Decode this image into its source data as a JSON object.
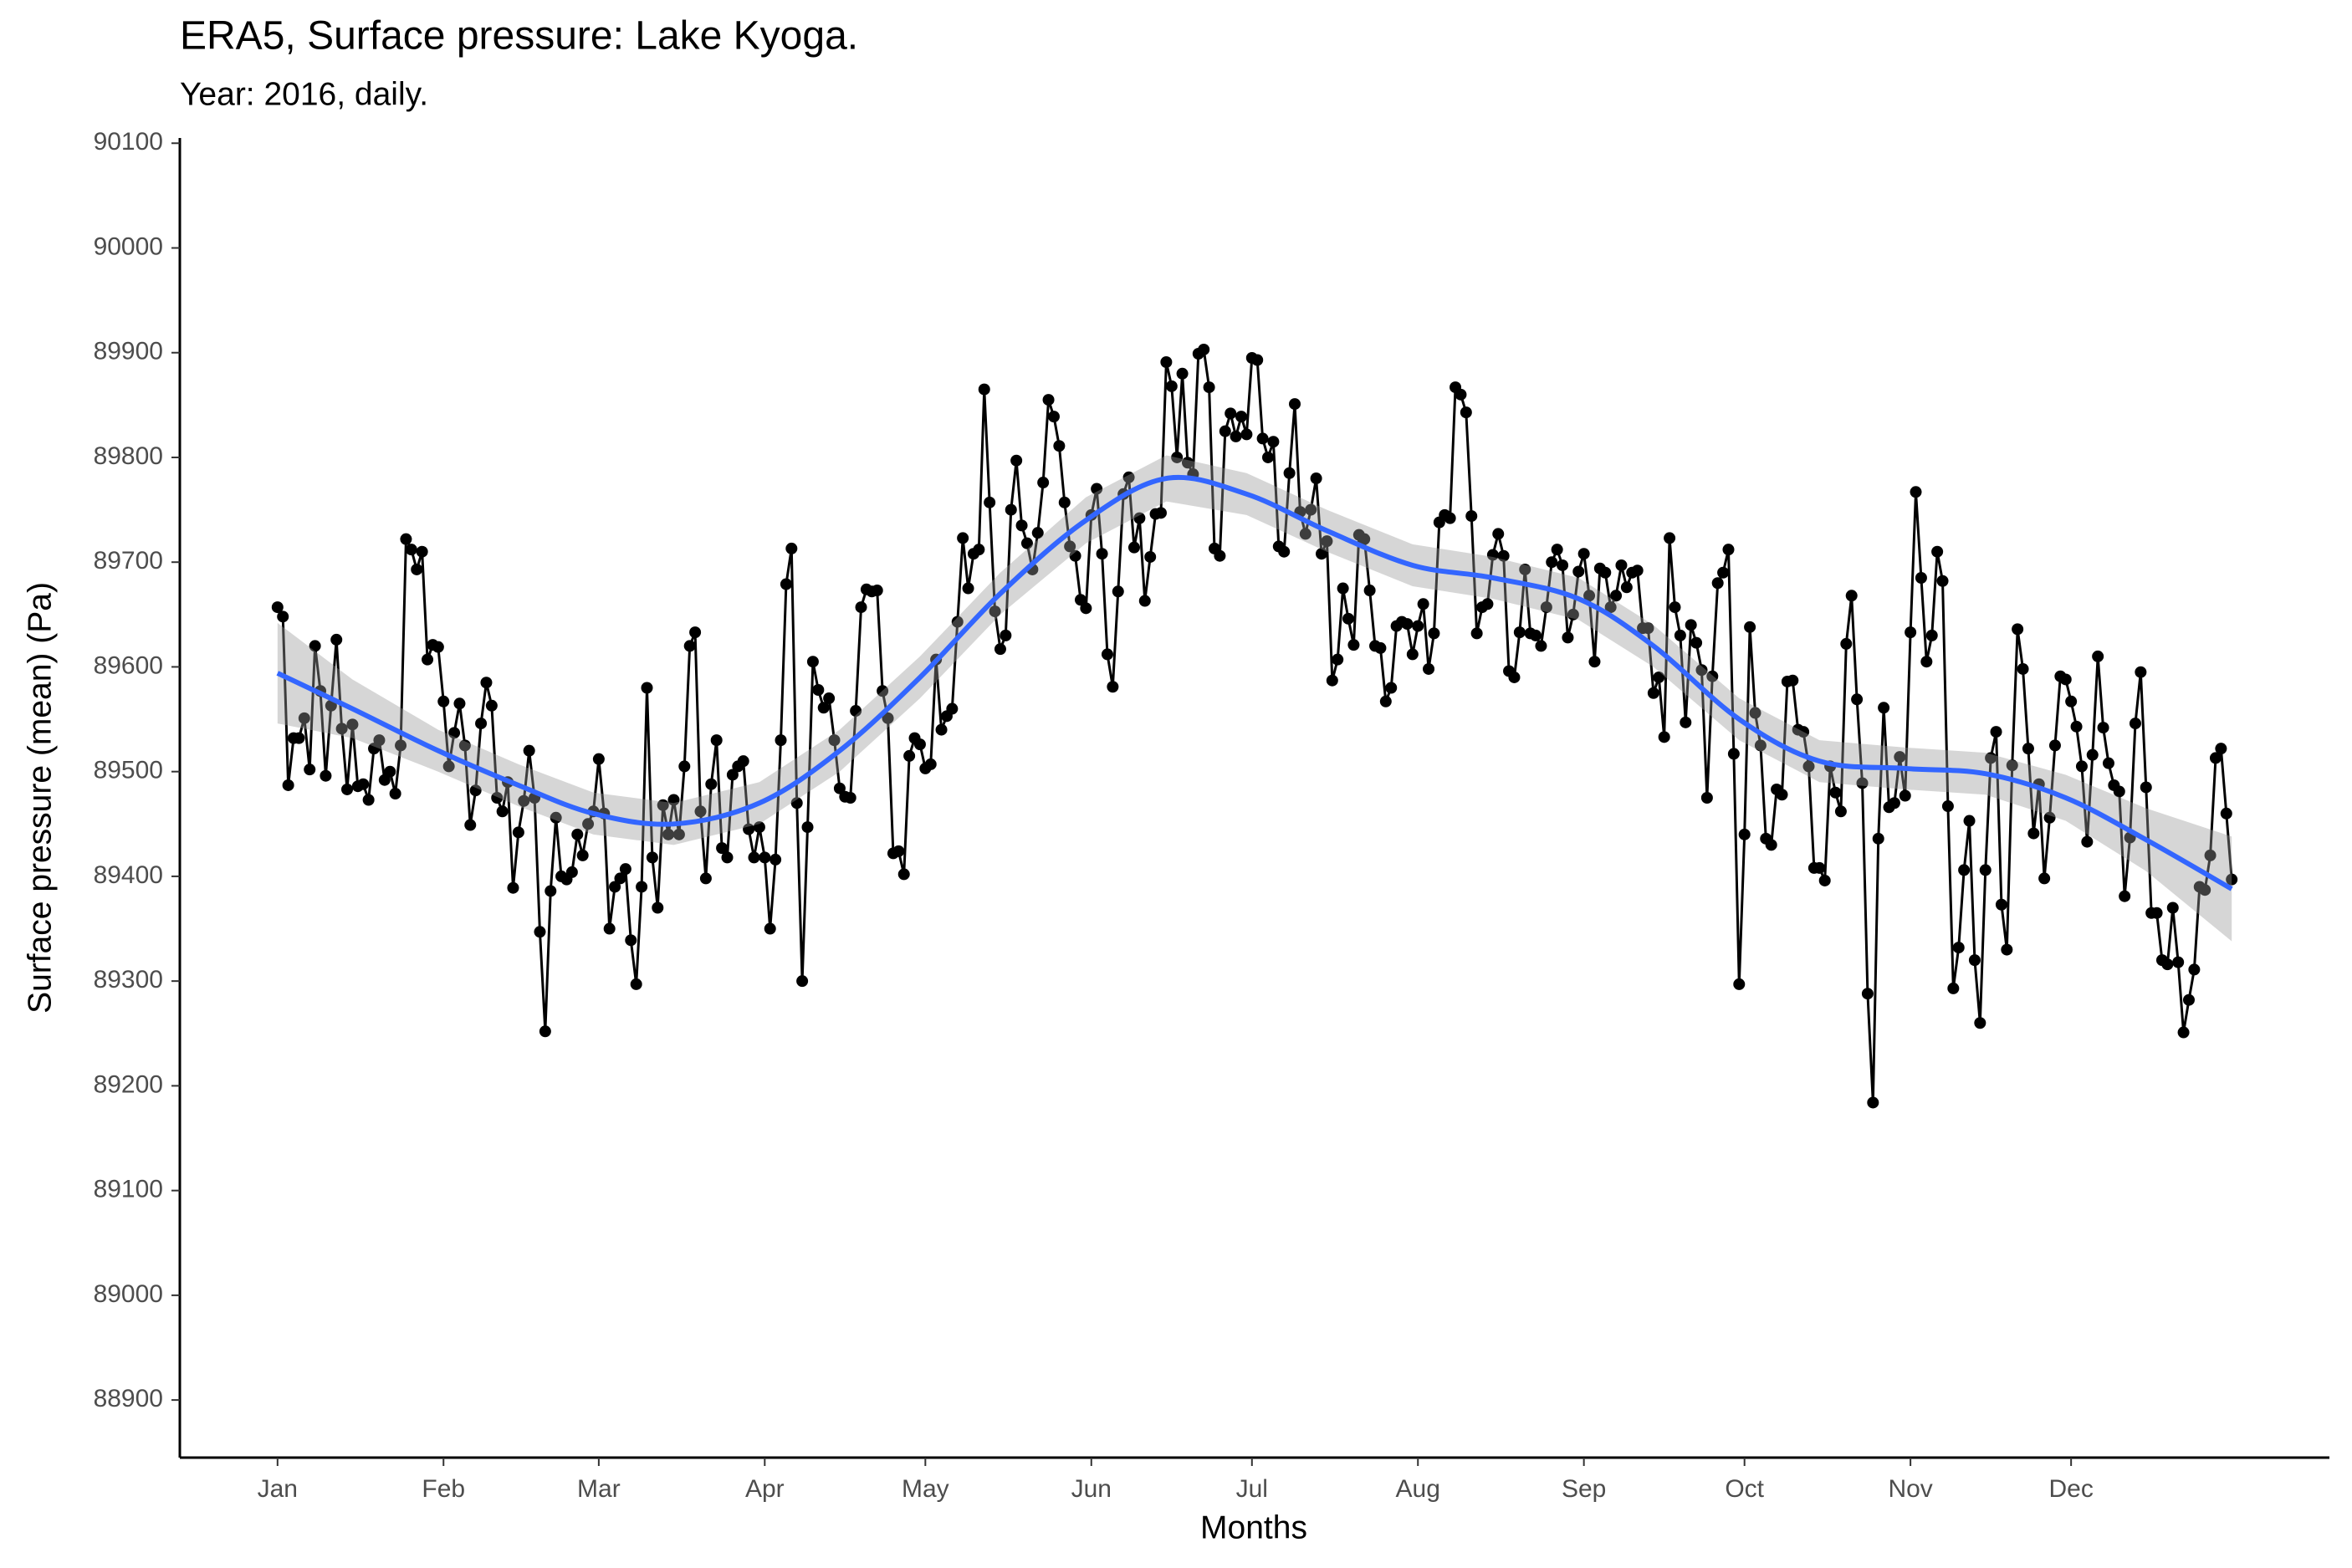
{
  "chart_data": {
    "type": "line",
    "title": "ERA5, Surface pressure: Lake Kyoga.",
    "subtitle": "Year: 2016, daily.",
    "x_label": "Months",
    "y_label": "Surface pressure (mean) (Pa)",
    "color": "#000000",
    "x": [
      1,
      2,
      3,
      4,
      5,
      6,
      7,
      8,
      9,
      10,
      11,
      12,
      13,
      14,
      15,
      16,
      17,
      18,
      19,
      20,
      21,
      22,
      23,
      24,
      25,
      26,
      27,
      28,
      29,
      30,
      31,
      32,
      33,
      34,
      35,
      36,
      37,
      38,
      39,
      40,
      41,
      42,
      43,
      44,
      45,
      46,
      47,
      48,
      49,
      50,
      51,
      52,
      53,
      54,
      55,
      56,
      57,
      58,
      59,
      60,
      61,
      62,
      63,
      64,
      65,
      66,
      67,
      68,
      69,
      70,
      71,
      72,
      73,
      74,
      75,
      76,
      77,
      78,
      79,
      80,
      81,
      82,
      83,
      84,
      85,
      86,
      87,
      88,
      89,
      90,
      91,
      92,
      93,
      94,
      95,
      96,
      97,
      98,
      99,
      100,
      101,
      102,
      103,
      104,
      105,
      106,
      107,
      108,
      109,
      110,
      111,
      112,
      113,
      114,
      115,
      116,
      117,
      118,
      119,
      120,
      121,
      122,
      123,
      124,
      125,
      126,
      127,
      128,
      129,
      130,
      131,
      132,
      133,
      134,
      135,
      136,
      137,
      138,
      139,
      140,
      141,
      142,
      143,
      144,
      145,
      146,
      147,
      148,
      149,
      150,
      151,
      152,
      153,
      154,
      155,
      156,
      157,
      158,
      159,
      160,
      161,
      162,
      163,
      164,
      165,
      166,
      167,
      168,
      169,
      170,
      171,
      172,
      173,
      174,
      175,
      176,
      177,
      178,
      179,
      180,
      181,
      182,
      183,
      184,
      185,
      186,
      187,
      188,
      189,
      190,
      191,
      192,
      193,
      194,
      195,
      196,
      197,
      198,
      199,
      200,
      201,
      202,
      203,
      204,
      205,
      206,
      207,
      208,
      209,
      210,
      211,
      212,
      213,
      214,
      215,
      216,
      217,
      218,
      219,
      220,
      221,
      222,
      223,
      224,
      225,
      226,
      227,
      228,
      229,
      230,
      231,
      232,
      233,
      234,
      235,
      236,
      237,
      238,
      239,
      240,
      241,
      242,
      243,
      244,
      245,
      246,
      247,
      248,
      249,
      250,
      251,
      252,
      253,
      254,
      255,
      256,
      257,
      258,
      259,
      260,
      261,
      262,
      263,
      264,
      265,
      266,
      267,
      268,
      269,
      270,
      271,
      272,
      273,
      274,
      275,
      276,
      277,
      278,
      279,
      280,
      281,
      282,
      283,
      284,
      285,
      286,
      287,
      288,
      289,
      290,
      291,
      292,
      293,
      294,
      295,
      296,
      297,
      298,
      299,
      300,
      301,
      302,
      303,
      304,
      305,
      306,
      307,
      308,
      309,
      310,
      311,
      312,
      313,
      314,
      315,
      316,
      317,
      318,
      319,
      320,
      321,
      322,
      323,
      324,
      325,
      326,
      327,
      328,
      329,
      330,
      331,
      332,
      333,
      334,
      335,
      336,
      337,
      338,
      339,
      340,
      341,
      342,
      343,
      344,
      345,
      346,
      347,
      348,
      349,
      350,
      351,
      352,
      353,
      354,
      355,
      356,
      357,
      358,
      359,
      360,
      361,
      362,
      363,
      364,
      365,
      366
    ],
    "values": [
      89657,
      89648,
      89487,
      89532,
      89532,
      89551,
      89502,
      89620,
      89577,
      89496,
      89563,
      89626,
      89541,
      89483,
      89545,
      89486,
      89488,
      89473,
      89522,
      89530,
      89492,
      89500,
      89479,
      89525,
      89722,
      89712,
      89693,
      89710,
      89607,
      89621,
      89619,
      89567,
      89505,
      89537,
      89565,
      89525,
      89449,
      89482,
      89546,
      89585,
      89563,
      89475,
      89462,
      89490,
      89389,
      89442,
      89472,
      89520,
      89475,
      89347,
      89252,
      89386,
      89456,
      89400,
      89397,
      89404,
      89440,
      89420,
      89450,
      89462,
      89512,
      89460,
      89350,
      89390,
      89398,
      89407,
      89339,
      89297,
      89390,
      89580,
      89418,
      89370,
      89468,
      89440,
      89473,
      89440,
      89505,
      89620,
      89633,
      89462,
      89398,
      89488,
      89530,
      89427,
      89418,
      89497,
      89505,
      89510,
      89445,
      89418,
      89447,
      89418,
      89350,
      89416,
      89530,
      89679,
      89713,
      89470,
      89300,
      89447,
      89605,
      89578,
      89561,
      89570,
      89530,
      89484,
      89476,
      89475,
      89558,
      89657,
      89674,
      89672,
      89673,
      89577,
      89551,
      89422,
      89424,
      89402,
      89515,
      89532,
      89526,
      89503,
      89507,
      89607,
      89540,
      89553,
      89560,
      89643,
      89723,
      89675,
      89708,
      89712,
      89865,
      89757,
      89653,
      89617,
      89630,
      89750,
      89797,
      89735,
      89718,
      89693,
      89728,
      89776,
      89855,
      89839,
      89811,
      89757,
      89715,
      89706,
      89664,
      89656,
      89745,
      89770,
      89708,
      89612,
      89581,
      89672,
      89765,
      89781,
      89714,
      89742,
      89663,
      89705,
      89746,
      89747,
      89891,
      89868,
      89800,
      89880,
      89795,
      89784,
      89899,
      89903,
      89867,
      89713,
      89706,
      89825,
      89842,
      89820,
      89839,
      89822,
      89895,
      89893,
      89818,
      89800,
      89815,
      89715,
      89710,
      89785,
      89851,
      89748,
      89727,
      89750,
      89780,
      89708,
      89720,
      89587,
      89607,
      89675,
      89646,
      89621,
      89726,
      89722,
      89673,
      89620,
      89618,
      89567,
      89580,
      89639,
      89643,
      89641,
      89612,
      89639,
      89660,
      89598,
      89632,
      89738,
      89745,
      89742,
      89867,
      89860,
      89843,
      89744,
      89632,
      89657,
      89660,
      89707,
      89727,
      89706,
      89596,
      89590,
      89633,
      89693,
      89632,
      89630,
      89620,
      89657,
      89700,
      89712,
      89697,
      89628,
      89650,
      89691,
      89708,
      89668,
      89605,
      89694,
      89690,
      89657,
      89668,
      89697,
      89676,
      89690,
      89692,
      89637,
      89637,
      89575,
      89590,
      89533,
      89723,
      89657,
      89630,
      89547,
      89640,
      89623,
      89597,
      89475,
      89591,
      89680,
      89690,
      89712,
      89517,
      89297,
      89440,
      89638,
      89556,
      89525,
      89436,
      89430,
      89483,
      89478,
      89586,
      89587,
      89540,
      89538,
      89505,
      89408,
      89408,
      89396,
      89505,
      89480,
      89462,
      89622,
      89668,
      89569,
      89489,
      89288,
      89184,
      89436,
      89561,
      89466,
      89470,
      89514,
      89477,
      89633,
      89767,
      89685,
      89605,
      89630,
      89710,
      89682,
      89467,
      89293,
      89332,
      89406,
      89453,
      89320,
      89260,
      89406,
      89513,
      89538,
      89373,
      89330,
      89506,
      89636,
      89598,
      89522,
      89441,
      89488,
      89398,
      89456,
      89525,
      89591,
      89588,
      89567,
      89543,
      89505,
      89433,
      89516,
      89610,
      89542,
      89508,
      89487,
      89481,
      89381,
      89437,
      89546,
      89595,
      89485,
      89365,
      89365,
      89320,
      89316,
      89370,
      89318,
      89251,
      89282,
      89311,
      89390,
      89387,
      89420,
      89513,
      89522,
      89460,
      89397
    ],
    "smooth": {
      "color": "#3366ff",
      "band_color": "#999999",
      "x": [
        1,
        15,
        31,
        46,
        60,
        75,
        91,
        106,
        121,
        136,
        152,
        167,
        182,
        197,
        213,
        228,
        244,
        258,
        274,
        289,
        305,
        320,
        335,
        350,
        366
      ],
      "values": [
        89594,
        89560,
        89520,
        89487,
        89460,
        89450,
        89470,
        89520,
        89590,
        89670,
        89740,
        89780,
        89765,
        89730,
        89697,
        89685,
        89665,
        89620,
        89550,
        89510,
        89503,
        89498,
        89475,
        89435,
        89388
      ],
      "lower": [
        89546,
        89532,
        89500,
        89467,
        89440,
        89430,
        89450,
        89500,
        89570,
        89650,
        89718,
        89758,
        89745,
        89710,
        89677,
        89665,
        89645,
        89600,
        89530,
        89490,
        89483,
        89478,
        89453,
        89405,
        89338
      ],
      "upper": [
        89642,
        89588,
        89540,
        89507,
        89480,
        89470,
        89490,
        89540,
        89610,
        89690,
        89762,
        89802,
        89785,
        89750,
        89717,
        89705,
        89685,
        89640,
        89570,
        89530,
        89523,
        89518,
        89497,
        89465,
        89438
      ]
    },
    "xlim": [
      -17.25,
      384.25
    ],
    "xticks": [
      {
        "value": 1,
        "label": "Jan"
      },
      {
        "value": 32,
        "label": "Feb"
      },
      {
        "value": 61,
        "label": "Mar"
      },
      {
        "value": 92,
        "label": "Apr"
      },
      {
        "value": 122,
        "label": "May"
      },
      {
        "value": 153,
        "label": "Jun"
      },
      {
        "value": 183,
        "label": "Jul"
      },
      {
        "value": 214,
        "label": "Aug"
      },
      {
        "value": 245,
        "label": "Sep"
      },
      {
        "value": 275,
        "label": "Oct"
      },
      {
        "value": 306,
        "label": "Nov"
      },
      {
        "value": 336,
        "label": "Dec"
      }
    ],
    "ylim": [
      88845,
      90105
    ],
    "yticks": [
      88900,
      89000,
      89100,
      89200,
      89300,
      89400,
      89500,
      89600,
      89700,
      89800,
      89900,
      90000,
      90100
    ],
    "grid": false
  }
}
